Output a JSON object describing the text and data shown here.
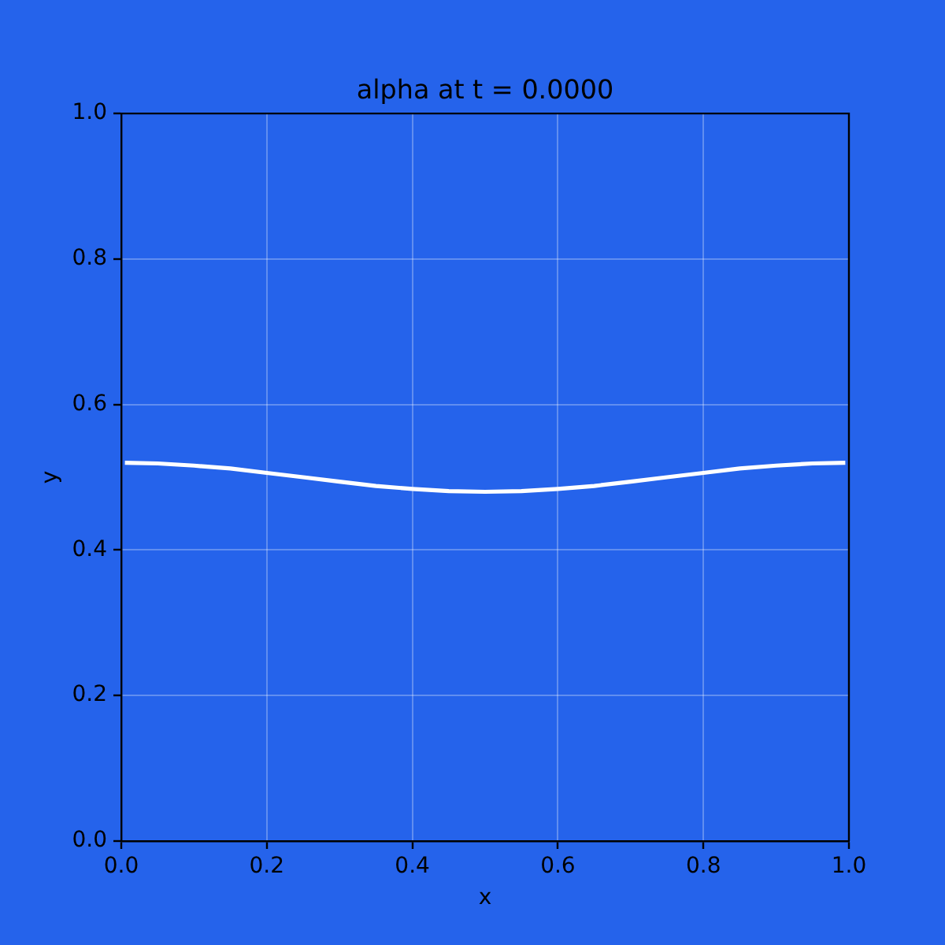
{
  "chart_data": {
    "type": "line",
    "title": "alpha at t = 0.0000",
    "xlabel": "x",
    "ylabel": "y",
    "x": [
      0.005,
      0.05,
      0.1,
      0.15,
      0.2,
      0.25,
      0.3,
      0.35,
      0.4,
      0.45,
      0.5,
      0.55,
      0.6,
      0.65,
      0.7,
      0.75,
      0.8,
      0.85,
      0.9,
      0.95,
      0.995
    ],
    "series": [
      {
        "color": "#ffffff",
        "values": [
          0.52,
          0.519,
          0.516,
          0.512,
          0.506,
          0.5,
          0.494,
          0.488,
          0.484,
          0.481,
          0.48,
          0.481,
          0.484,
          0.488,
          0.494,
          0.5,
          0.506,
          0.512,
          0.516,
          0.519,
          0.52
        ]
      }
    ],
    "xlim": [
      0,
      1
    ],
    "ylim": [
      0,
      1
    ],
    "xticks": [
      {
        "value": 0,
        "label": "0.0"
      },
      0.2,
      0.4,
      0.6,
      0.8,
      {
        "value": 1,
        "label": "1.0"
      }
    ],
    "yticks": [
      {
        "value": 0,
        "label": "0.0"
      },
      0.2,
      0.4,
      0.6,
      0.8,
      {
        "value": 1,
        "label": "1.0"
      }
    ],
    "grid": true,
    "legend": false,
    "marker": "none",
    "line_style": "solid"
  }
}
